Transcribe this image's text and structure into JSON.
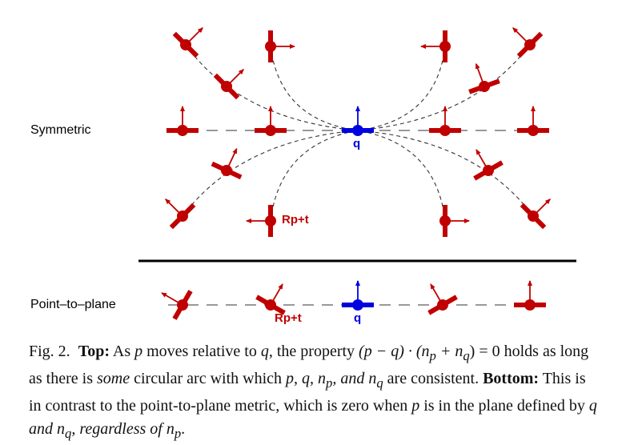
{
  "rows": {
    "symmetric_label": "Symmetric",
    "point_to_plane_label": "Point–to–plane"
  },
  "labels": {
    "rp_t": "Rp+t",
    "q": "q"
  },
  "colors": {
    "red": "#c00000",
    "blue": "#0000e0",
    "divider": "#000000",
    "dashed": "#333333"
  },
  "caption": {
    "fig": "Fig. 2.",
    "top_bold": "Top:",
    "s1": " As ",
    "p1": "p",
    "s2": " moves relative to ",
    "q1": "q",
    "s3": ", the property ",
    "formula": "(p − q) · (n",
    "sub_p": "p",
    "plus": " + n",
    "sub_q": "q",
    "eq": ") = 0",
    "s4": " holds as long as there is ",
    "some": "some",
    "s5": " circular arc with which ",
    "p2": "p",
    "c1": ", ",
    "q2": "q",
    "c2": ", n",
    "sub_p2": "p",
    "s6": ", and n",
    "sub_q2": "q",
    "s7": " are consistent. ",
    "bottom_bold": "Bottom:",
    "s8": " This is in contrast to the point-to-plane metric, which is zero when ",
    "p3": "p",
    "s9": " is in the plane defined by ",
    "q3": "q",
    "s10": " and n",
    "sub_q3": "q",
    "s11": ", regardless of n",
    "sub_p3": "p",
    "s12": "."
  }
}
